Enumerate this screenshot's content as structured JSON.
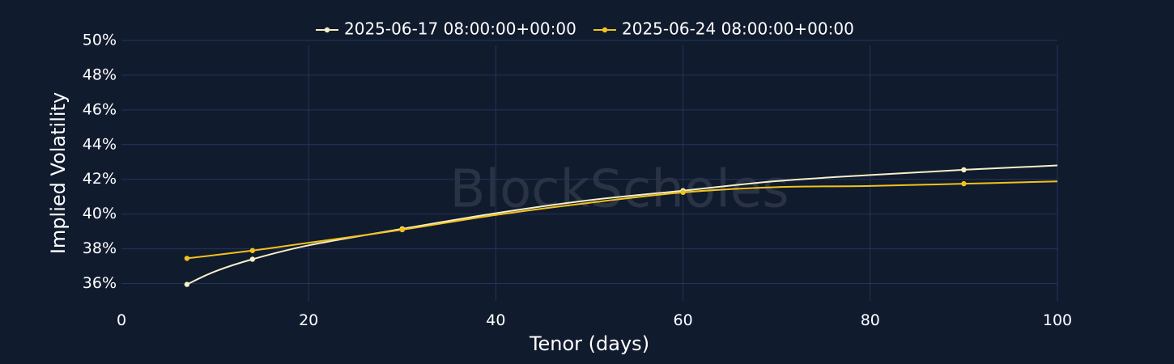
{
  "watermark": "BlockScholes",
  "colors": {
    "background": "#111b2e",
    "grid": "#24345a"
  },
  "chart_data": {
    "type": "line",
    "title": "",
    "xlabel": "Tenor (days)",
    "ylabel": "Implied Volatility",
    "xlim": [
      0,
      100
    ],
    "ylim": [
      35,
      50
    ],
    "x_ticks": [
      0,
      20,
      40,
      60,
      80,
      100
    ],
    "y_ticks": [
      36,
      38,
      40,
      42,
      44,
      46,
      48,
      50
    ],
    "y_tick_suffix": "%",
    "grid": true,
    "legend_position": "top-center",
    "series": [
      {
        "name": "2025-06-17 08:00:00+00:00",
        "color": "#f5f0c8",
        "markers": [
          [
            7,
            35.95
          ],
          [
            14,
            37.4
          ],
          [
            30,
            39.15
          ],
          [
            60,
            41.35
          ],
          [
            90,
            42.55
          ]
        ],
        "curve": [
          [
            7,
            35.95
          ],
          [
            10,
            36.7
          ],
          [
            14,
            37.4
          ],
          [
            20,
            38.2
          ],
          [
            30,
            39.15
          ],
          [
            40,
            40.05
          ],
          [
            50,
            40.8
          ],
          [
            60,
            41.35
          ],
          [
            70,
            41.9
          ],
          [
            80,
            42.25
          ],
          [
            90,
            42.55
          ],
          [
            100,
            42.8
          ]
        ]
      },
      {
        "name": "2025-06-24 08:00:00+00:00",
        "color": "#f2c21b",
        "markers": [
          [
            7,
            37.45
          ],
          [
            14,
            37.9
          ],
          [
            30,
            39.1
          ],
          [
            60,
            41.25
          ],
          [
            90,
            41.75
          ]
        ],
        "curve": [
          [
            7,
            37.45
          ],
          [
            14,
            37.9
          ],
          [
            20,
            38.35
          ],
          [
            30,
            39.1
          ],
          [
            40,
            39.95
          ],
          [
            50,
            40.65
          ],
          [
            60,
            41.25
          ],
          [
            70,
            41.55
          ],
          [
            80,
            41.62
          ],
          [
            90,
            41.75
          ],
          [
            100,
            41.88
          ]
        ]
      }
    ]
  }
}
